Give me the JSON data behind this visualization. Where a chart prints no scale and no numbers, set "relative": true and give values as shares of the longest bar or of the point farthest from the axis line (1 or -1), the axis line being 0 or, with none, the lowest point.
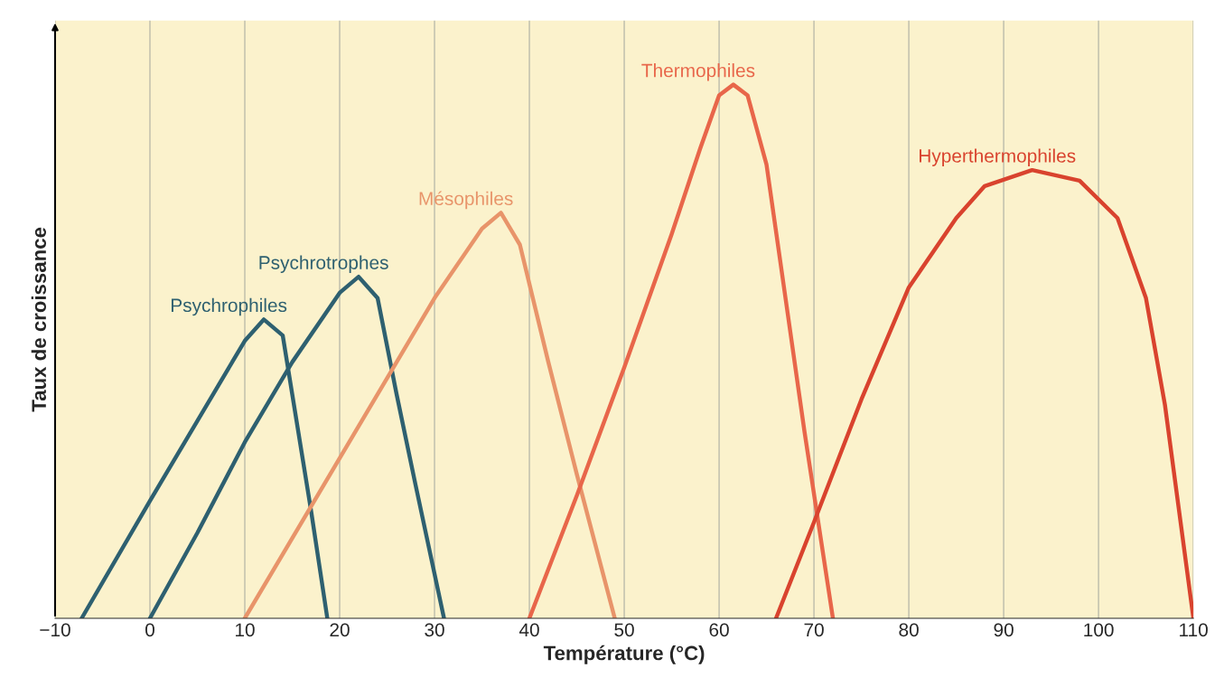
{
  "chart_data": {
    "type": "line",
    "relative": true,
    "xlabel": "Température (°C)",
    "ylabel": "Taux de croissance",
    "xlim": [
      -10,
      110
    ],
    "xticks": [
      -10,
      0,
      10,
      20,
      30,
      40,
      50,
      60,
      70,
      80,
      90,
      100,
      110
    ],
    "grid": "x",
    "legend": false,
    "marker": "none",
    "line_style": "solid",
    "series": [
      {
        "name": "Psychrophiles",
        "color": "#2e6070",
        "x": [
          -7.2,
          0,
          5,
          10,
          12,
          14,
          15,
          17,
          18.7
        ],
        "values": [
          0,
          0.22,
          0.37,
          0.52,
          0.56,
          0.53,
          0.42,
          0.2,
          0
        ]
      },
      {
        "name": "Psychrotrophes",
        "color": "#2e6070",
        "x": [
          0,
          5,
          10,
          15,
          20,
          22,
          24,
          26,
          28,
          31
        ],
        "values": [
          0,
          0.16,
          0.33,
          0.48,
          0.61,
          0.64,
          0.6,
          0.42,
          0.25,
          0
        ]
      },
      {
        "name": "Mésophiles",
        "color": "#e8946a",
        "x": [
          10,
          20,
          30,
          35,
          37,
          39,
          42,
          45,
          49
        ],
        "values": [
          0,
          0.3,
          0.6,
          0.73,
          0.76,
          0.7,
          0.48,
          0.27,
          0
        ]
      },
      {
        "name": "Thermophiles",
        "color": "#e8664a",
        "x": [
          40,
          45,
          50,
          55,
          58,
          60,
          61.5,
          63,
          65,
          67,
          69,
          72
        ],
        "values": [
          0,
          0.23,
          0.47,
          0.72,
          0.88,
          0.98,
          1,
          0.98,
          0.85,
          0.6,
          0.35,
          0
        ]
      },
      {
        "name": "Hyperthermophiles",
        "color": "#d9432e",
        "x": [
          66,
          70,
          75,
          80,
          85,
          88,
          93,
          98,
          102,
          105,
          107,
          110
        ],
        "values": [
          0,
          0.18,
          0.41,
          0.62,
          0.75,
          0.81,
          0.84,
          0.82,
          0.75,
          0.6,
          0.4,
          0
        ]
      }
    ]
  }
}
